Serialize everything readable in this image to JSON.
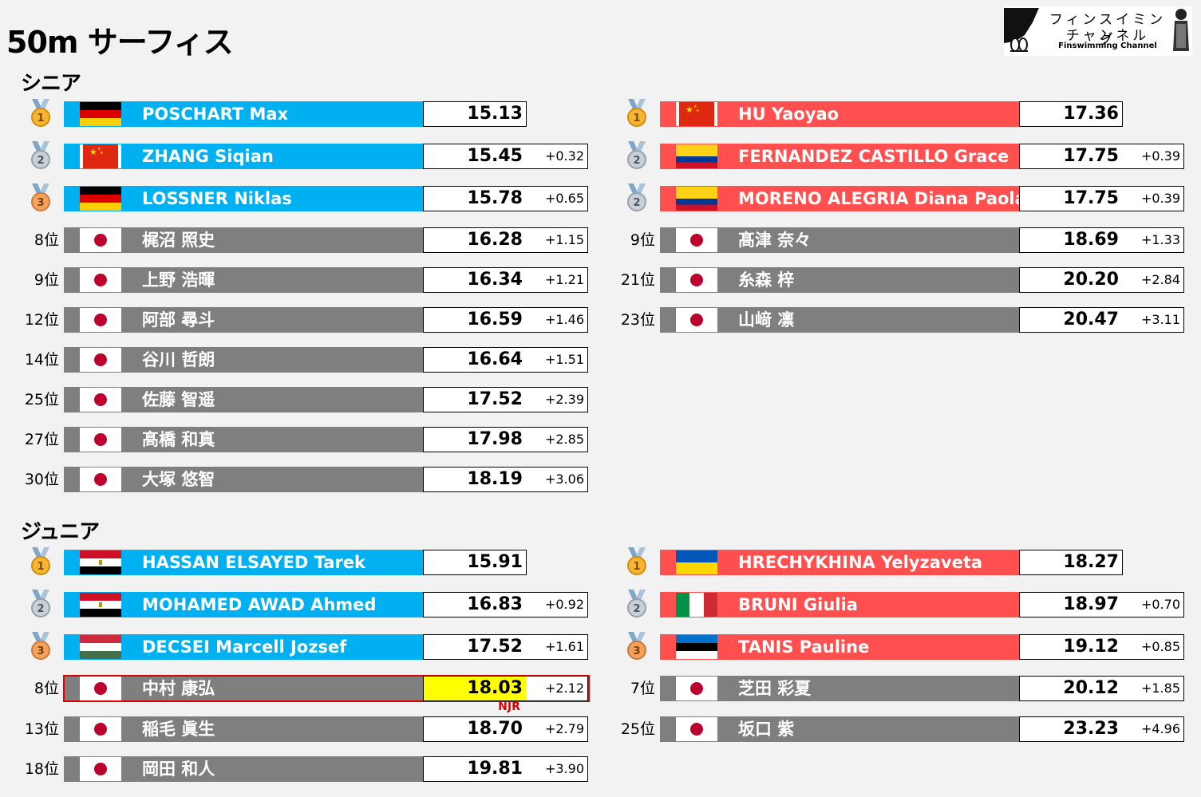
{
  "title": "50m サーフィス",
  "logo": {
    "jp_line1": "フィンスイミング",
    "jp_line2": "チャンネル",
    "en": "Finswimming Channel"
  },
  "colors": {
    "men_bar": "#00b0f0",
    "women_bar": "#ff4f4f",
    "other_bar": "#7f7f7f",
    "record_highlight": "#ffff00",
    "record_text": "#e00000"
  },
  "sections": [
    {
      "label": "シニア",
      "columns": [
        [
          {
            "medal": "gold",
            "medal_num": "1",
            "bar": "blue",
            "flag": "germany",
            "name": "POSCHART Max",
            "time": "15.13",
            "diff": ""
          },
          {
            "medal": "silver",
            "medal_num": "2",
            "bar": "blue",
            "flag": "china",
            "name": "ZHANG Siqian",
            "time": "15.45",
            "diff": "+0.32"
          },
          {
            "medal": "bronze",
            "medal_num": "3",
            "bar": "blue",
            "flag": "germany",
            "name": "LOSSNER Niklas",
            "time": "15.78",
            "diff": "+0.65"
          },
          {
            "rank": "8位",
            "bar": "gray",
            "flag": "japan",
            "name": "梶沼 照史",
            "time": "16.28",
            "diff": "+1.15"
          },
          {
            "rank": "9位",
            "bar": "gray",
            "flag": "japan",
            "name": "上野 浩暉",
            "time": "16.34",
            "diff": "+1.21"
          },
          {
            "rank": "12位",
            "bar": "gray",
            "flag": "japan",
            "name": "阿部 尋斗",
            "time": "16.59",
            "diff": "+1.46"
          },
          {
            "rank": "14位",
            "bar": "gray",
            "flag": "japan",
            "name": "谷川 哲朗",
            "time": "16.64",
            "diff": "+1.51"
          },
          {
            "rank": "25位",
            "bar": "gray",
            "flag": "japan",
            "name": "佐藤 智遥",
            "time": "17.52",
            "diff": "+2.39"
          },
          {
            "rank": "27位",
            "bar": "gray",
            "flag": "japan",
            "name": "髙橋 和真",
            "time": "17.98",
            "diff": "+2.85"
          },
          {
            "rank": "30位",
            "bar": "gray",
            "flag": "japan",
            "name": "大塚 悠智",
            "time": "18.19",
            "diff": "+3.06"
          }
        ],
        [
          {
            "medal": "gold",
            "medal_num": "1",
            "bar": "red",
            "flag": "china",
            "name": "HU Yaoyao",
            "time": "17.36",
            "diff": ""
          },
          {
            "medal": "silver",
            "medal_num": "2",
            "bar": "red",
            "flag": "colombia",
            "name": "FERNANDEZ CASTILLO Grace",
            "time": "17.75",
            "diff": "+0.39"
          },
          {
            "medal": "silver",
            "medal_num": "2",
            "bar": "red",
            "flag": "colombia",
            "name": "MORENO ALEGRIA Diana Paola",
            "time": "17.75",
            "diff": "+0.39"
          },
          {
            "rank": "9位",
            "bar": "gray",
            "flag": "japan",
            "name": "髙津 奈々",
            "time": "18.69",
            "diff": "+1.33"
          },
          {
            "rank": "21位",
            "bar": "gray",
            "flag": "japan",
            "name": "糸森 梓",
            "time": "20.20",
            "diff": "+2.84"
          },
          {
            "rank": "23位",
            "bar": "gray",
            "flag": "japan",
            "name": "山﨑 凛",
            "time": "20.47",
            "diff": "+3.11"
          }
        ]
      ]
    },
    {
      "label": "ジュニア",
      "columns": [
        [
          {
            "medal": "gold",
            "medal_num": "1",
            "bar": "blue",
            "flag": "egypt",
            "name": "HASSAN ELSAYED Tarek",
            "time": "15.91",
            "diff": ""
          },
          {
            "medal": "silver",
            "medal_num": "2",
            "bar": "blue",
            "flag": "egypt",
            "name": "MOHAMED AWAD Ahmed",
            "time": "16.83",
            "diff": "+0.92"
          },
          {
            "medal": "bronze",
            "medal_num": "3",
            "bar": "blue",
            "flag": "hungary",
            "name": "DECSEI Marcell Jozsef",
            "time": "17.52",
            "diff": "+1.61"
          },
          {
            "rank": "8位",
            "bar": "gray",
            "flag": "japan",
            "name": "中村 康弘",
            "time": "18.03",
            "diff": "+2.12",
            "highlight": true,
            "note": "NJR"
          },
          {
            "rank": "13位",
            "bar": "gray",
            "flag": "japan",
            "name": "稲毛 眞生",
            "time": "18.70",
            "diff": "+2.79"
          },
          {
            "rank": "18位",
            "bar": "gray",
            "flag": "japan",
            "name": "岡田 和人",
            "time": "19.81",
            "diff": "+3.90"
          }
        ],
        [
          {
            "medal": "gold",
            "medal_num": "1",
            "bar": "red",
            "flag": "ukraine",
            "name": "HRECHYKHINA Yelyzaveta",
            "time": "18.27",
            "diff": ""
          },
          {
            "medal": "silver",
            "medal_num": "2",
            "bar": "red",
            "flag": "italy",
            "name": "BRUNI Giulia",
            "time": "18.97",
            "diff": "+0.70"
          },
          {
            "medal": "bronze",
            "medal_num": "3",
            "bar": "red",
            "flag": "estonia",
            "name": "TANIS Pauline",
            "time": "19.12",
            "diff": "+0.85"
          },
          {
            "rank": "7位",
            "bar": "gray",
            "flag": "japan",
            "name": "芝田 彩夏",
            "time": "20.12",
            "diff": "+1.85"
          },
          {
            "rank": "25位",
            "bar": "gray",
            "flag": "japan",
            "name": "坂口 紫",
            "time": "23.23",
            "diff": "+4.96"
          }
        ]
      ]
    }
  ]
}
